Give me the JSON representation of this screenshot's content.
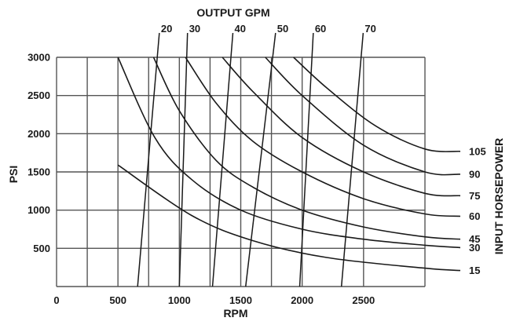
{
  "chart_data": {
    "type": "line",
    "title": "",
    "xlabel": "RPM",
    "ylabel": "PSI",
    "top_axis_label": "OUTPUT GPM",
    "right_axis_label": "INPUT HORSEPOWER",
    "xlim": [
      0,
      3000
    ],
    "ylim": [
      0,
      3000
    ],
    "grid": true,
    "x_ticks": [
      {
        "value": 0,
        "label": "0"
      },
      {
        "value": 500,
        "label": "500"
      },
      {
        "value": 1000,
        "label": "1000"
      },
      {
        "value": 1500,
        "label": "1500"
      },
      {
        "value": 2000,
        "label": "2000"
      },
      {
        "value": 2500,
        "label": "2500"
      }
    ],
    "x_grid": [
      0,
      250,
      500,
      750,
      1000,
      1250,
      1500,
      1750,
      2000,
      2500,
      3000
    ],
    "y_ticks": [
      {
        "value": 500,
        "label": "500"
      },
      {
        "value": 1000,
        "label": "1000"
      },
      {
        "value": 1500,
        "label": "1500"
      },
      {
        "value": 2000,
        "label": "2000"
      },
      {
        "value": 2500,
        "label": "2500"
      },
      {
        "value": 3000,
        "label": "3000"
      }
    ],
    "horsepower_series": [
      {
        "name": "15",
        "x": [
          500,
          1100,
          1600,
          2200,
          3000
        ],
        "y": [
          1590,
          930,
          600,
          380,
          240
        ]
      },
      {
        "name": "30",
        "x": [
          500,
          800,
          1100,
          1500,
          2000,
          2500,
          3000
        ],
        "y": [
          3000,
          1950,
          1400,
          1000,
          750,
          620,
          540
        ]
      },
      {
        "name": "45",
        "x": [
          790,
          1000,
          1300,
          1600,
          2000,
          2500,
          3000
        ],
        "y": [
          3000,
          2300,
          1650,
          1300,
          1000,
          780,
          650
        ]
      },
      {
        "name": "60",
        "x": [
          1050,
          1300,
          1600,
          2000,
          2500,
          3000
        ],
        "y": [
          3000,
          2400,
          1900,
          1500,
          1150,
          950
        ]
      },
      {
        "name": "75",
        "x": [
          1350,
          1600,
          2000,
          2500,
          3000
        ],
        "y": [
          3000,
          2550,
          1950,
          1500,
          1220
        ]
      },
      {
        "name": "90",
        "x": [
          1700,
          2000,
          2500,
          3000
        ],
        "y": [
          3000,
          2500,
          1850,
          1500
        ]
      },
      {
        "name": "105",
        "x": [
          1930,
          2200,
          2600,
          3000
        ],
        "y": [
          3000,
          2600,
          2100,
          1800
        ]
      }
    ],
    "gpm_series": [
      {
        "name": "20",
        "x_bottom": 660,
        "x_top": 820
      },
      {
        "name": "30",
        "x_bottom": 1000,
        "x_top": 1060
      },
      {
        "name": "40",
        "x_bottom": 1270,
        "x_top": 1420
      },
      {
        "name": "50",
        "x_bottom": 1540,
        "x_top": 1760
      },
      {
        "name": "60",
        "x_bottom": 1980,
        "x_top": 2080
      },
      {
        "name": "70",
        "x_bottom": 2320,
        "x_top": 2480
      }
    ]
  }
}
